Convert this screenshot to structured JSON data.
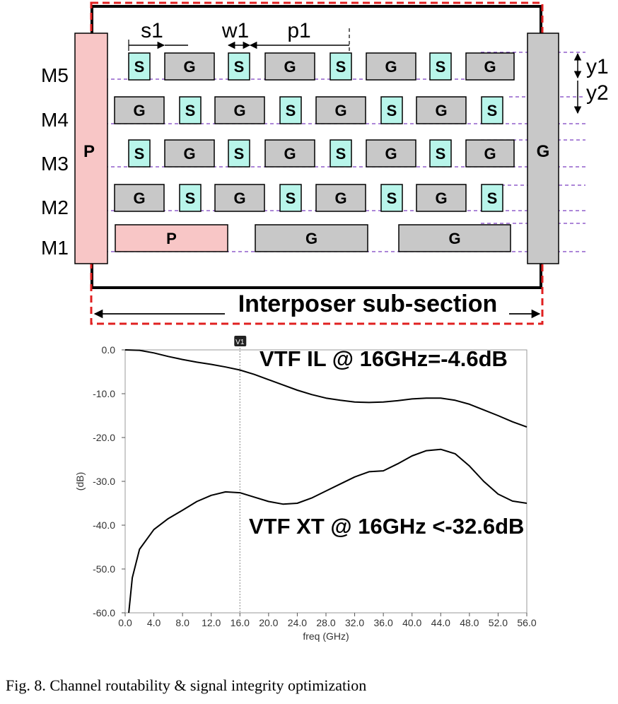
{
  "diagram": {
    "layers": [
      "M5",
      "M4",
      "M3",
      "M2",
      "M1"
    ],
    "dims": {
      "s1": "s1",
      "w1": "w1",
      "p1": "p1",
      "y1": "y1",
      "y2": "y2"
    },
    "rows": {
      "m5": [
        "S",
        "G",
        "S",
        "G",
        "S",
        "G",
        "S",
        "G"
      ],
      "m4": [
        "G",
        "S",
        "G",
        "S",
        "G",
        "S",
        "G",
        "S"
      ],
      "m3": [
        "S",
        "G",
        "S",
        "G",
        "S",
        "G",
        "S",
        "G"
      ],
      "m2": [
        "G",
        "S",
        "G",
        "S",
        "G",
        "S",
        "G",
        "S"
      ],
      "m1": [
        "P",
        "G",
        "G"
      ]
    },
    "left_rail": "P",
    "right_rail": "G",
    "section_label": "Interposer sub-section",
    "colors": {
      "signal": "#b8f5ea",
      "ground": "#c8c8c8",
      "power": "#f8c6c6",
      "border": "#e02020",
      "guide": "#7a3fc0"
    }
  },
  "chart_data": {
    "type": "line",
    "xlabel": "freq (GHz)",
    "ylabel": "(dB)",
    "xlim": [
      0,
      56
    ],
    "ylim": [
      -60,
      0
    ],
    "x_ticks": [
      "0.0",
      "4.0",
      "8.0",
      "12.0",
      "16.0",
      "20.0",
      "24.0",
      "28.0",
      "32.0",
      "36.0",
      "40.0",
      "44.0",
      "48.0",
      "52.0",
      "56.0"
    ],
    "y_ticks": [
      "0.0",
      "-10.0",
      "-20.0",
      "-30.0",
      "-40.0",
      "-50.0",
      "-60.0"
    ],
    "marker": {
      "label": "V1",
      "x": 16
    },
    "series": [
      {
        "id": "il",
        "x": [
          0,
          2,
          4,
          6,
          8,
          10,
          12,
          14,
          16,
          18,
          20,
          22,
          24,
          26,
          28,
          30,
          32,
          34,
          36,
          38,
          40,
          42,
          44,
          46,
          48,
          50,
          52,
          54,
          56
        ],
        "y": [
          0,
          -0.1,
          -0.7,
          -1.5,
          -2.2,
          -2.8,
          -3.3,
          -3.9,
          -4.6,
          -5.6,
          -6.8,
          -8.0,
          -9.2,
          -10.2,
          -11.0,
          -11.5,
          -11.9,
          -12.0,
          -11.9,
          -11.6,
          -11.2,
          -11.0,
          -11.0,
          -11.5,
          -12.4,
          -13.7,
          -15.0,
          -16.4,
          -17.6
        ]
      },
      {
        "id": "xt",
        "x": [
          0.5,
          1,
          2,
          4,
          6,
          8,
          10,
          12,
          14,
          16,
          18,
          20,
          22,
          24,
          26,
          28,
          30,
          32,
          34,
          36,
          38,
          40,
          42,
          44,
          46,
          48,
          50,
          52,
          54,
          56
        ],
        "y": [
          -60,
          -52,
          -45.5,
          -41,
          -38.5,
          -36.6,
          -34.6,
          -33.2,
          -32.4,
          -32.6,
          -33.6,
          -34.6,
          -35.2,
          -35.0,
          -33.8,
          -32.2,
          -30.6,
          -29.0,
          -27.8,
          -27.6,
          -26,
          -24.2,
          -23.0,
          -22.7,
          -23.7,
          -26.5,
          -30.0,
          -32.9,
          -34.5,
          -35.0
        ]
      }
    ],
    "annotations": [
      {
        "text": "VTF IL @ 16GHz=-4.6dB"
      },
      {
        "text": "VTF XT @ 16GHz <-32.6dB"
      }
    ]
  },
  "caption": "Fig. 8. Channel routability & signal integrity optimization"
}
